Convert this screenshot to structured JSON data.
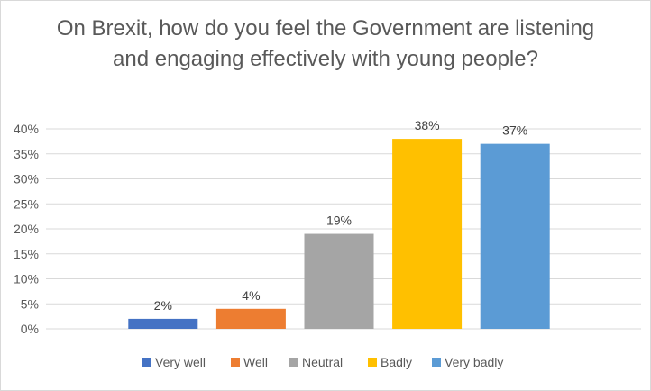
{
  "chart_data": {
    "type": "bar",
    "title": "On Brexit, how do you feel the Government are listening and engaging effectively with young people?",
    "categories": [
      "Very well",
      "Well",
      "Neutral",
      "Badly",
      "Very badly"
    ],
    "values": [
      2,
      4,
      19,
      38,
      37
    ],
    "value_labels": [
      "2%",
      "4%",
      "19%",
      "38%",
      "37%"
    ],
    "colors": [
      "#4472c4",
      "#ed7d31",
      "#a5a5a5",
      "#ffc000",
      "#5b9bd5"
    ],
    "xlabel": "",
    "ylabel": "",
    "ylim": [
      0,
      40
    ],
    "yticks": [
      "0%",
      "5%",
      "10%",
      "15%",
      "20%",
      "25%",
      "30%",
      "35%",
      "40%"
    ],
    "grid": true,
    "legend": "bottom"
  }
}
